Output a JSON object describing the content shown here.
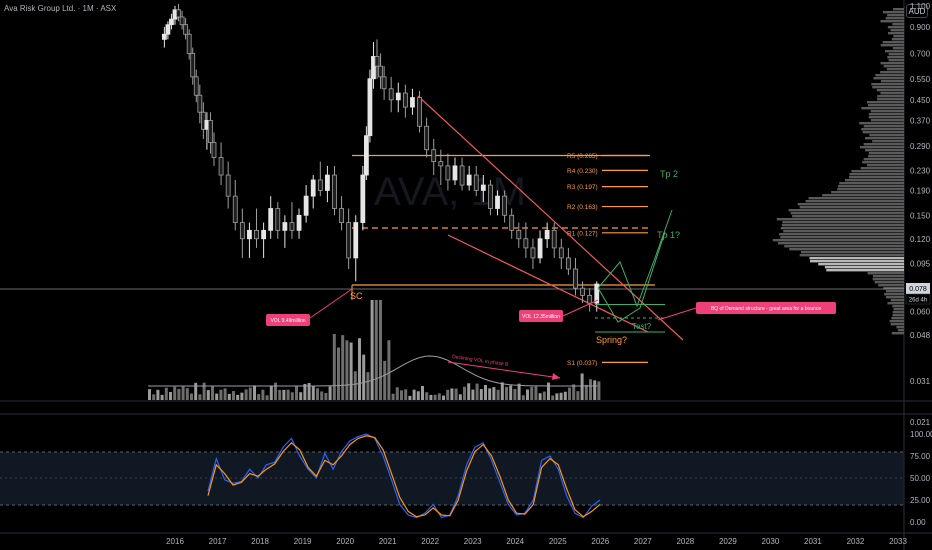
{
  "header": {
    "symbol": "Ava Risk Group Ltd. · 1M · ASX"
  },
  "currency_button": "AUD",
  "watermark": "AVA, 1M",
  "price_tag": {
    "value": "0.078",
    "countdown": "26d 4h"
  },
  "colors": {
    "bull": "#e6e6e6",
    "bear": "#a0a0a0",
    "orange": "#ff9b3c",
    "red_line": "#f05a5a",
    "green": "#3fae6a",
    "pink": "#f0407a",
    "stoch_k": "#2962ff",
    "stoch_d": "#ff9800"
  },
  "chart_data": [
    {
      "type": "candlestick",
      "title": "Ava Risk Group Ltd. · 1M · ASX",
      "y_scale": "log",
      "y_ticks": [
        "1.100",
        "0.900",
        "0.700",
        "0.550",
        "0.450",
        "0.370",
        "0.290",
        "0.230",
        "0.190",
        "0.150",
        "0.120",
        "0.095",
        "0.060",
        "0.048",
        "0.031",
        "0.021"
      ],
      "x_ticks": [
        "2016",
        "2017",
        "2018",
        "2019",
        "2020",
        "2021",
        "2022",
        "2023",
        "2024",
        "2025",
        "2026",
        "2027",
        "2028",
        "2029",
        "2030",
        "2031",
        "2032",
        "2033"
      ],
      "current_price": 0.078,
      "candles": [
        {
          "t": "2015-10",
          "o": 0.8,
          "h": 0.9,
          "l": 0.74,
          "c": 0.84
        },
        {
          "t": "2015-11",
          "o": 0.84,
          "h": 0.95,
          "l": 0.8,
          "c": 0.92
        },
        {
          "t": "2015-12",
          "o": 0.92,
          "h": 1.02,
          "l": 0.88,
          "c": 0.97
        },
        {
          "t": "2016-01",
          "o": 0.97,
          "h": 1.1,
          "l": 0.92,
          "c": 1.06
        },
        {
          "t": "2016-02",
          "o": 1.06,
          "h": 1.12,
          "l": 0.95,
          "c": 0.99
        },
        {
          "t": "2016-03",
          "o": 0.99,
          "h": 1.05,
          "l": 0.88,
          "c": 0.92
        },
        {
          "t": "2016-04",
          "o": 0.92,
          "h": 0.98,
          "l": 0.8,
          "c": 0.84
        },
        {
          "t": "2016-05",
          "o": 0.84,
          "h": 0.88,
          "l": 0.66,
          "c": 0.7
        },
        {
          "t": "2016-06",
          "o": 0.7,
          "h": 0.74,
          "l": 0.52,
          "c": 0.56
        },
        {
          "t": "2016-07",
          "o": 0.56,
          "h": 0.6,
          "l": 0.44,
          "c": 0.47
        },
        {
          "t": "2016-08",
          "o": 0.47,
          "h": 0.52,
          "l": 0.36,
          "c": 0.4
        },
        {
          "t": "2016-09",
          "o": 0.4,
          "h": 0.44,
          "l": 0.31,
          "c": 0.34
        },
        {
          "t": "2016-10",
          "o": 0.34,
          "h": 0.4,
          "l": 0.28,
          "c": 0.37
        },
        {
          "t": "2016-11",
          "o": 0.37,
          "h": 0.4,
          "l": 0.27,
          "c": 0.3
        },
        {
          "t": "2016-12",
          "o": 0.3,
          "h": 0.33,
          "l": 0.24,
          "c": 0.26
        },
        {
          "t": "2017-02",
          "o": 0.26,
          "h": 0.3,
          "l": 0.2,
          "c": 0.22
        },
        {
          "t": "2017-04",
          "o": 0.22,
          "h": 0.25,
          "l": 0.16,
          "c": 0.18
        },
        {
          "t": "2017-06",
          "o": 0.18,
          "h": 0.21,
          "l": 0.13,
          "c": 0.14
        },
        {
          "t": "2017-08",
          "o": 0.14,
          "h": 0.16,
          "l": 0.1,
          "c": 0.12
        },
        {
          "t": "2017-10",
          "o": 0.12,
          "h": 0.14,
          "l": 0.1,
          "c": 0.13
        },
        {
          "t": "2017-12",
          "o": 0.13,
          "h": 0.16,
          "l": 0.11,
          "c": 0.12
        },
        {
          "t": "2018-02",
          "o": 0.12,
          "h": 0.14,
          "l": 0.1,
          "c": 0.13
        },
        {
          "t": "2018-04",
          "o": 0.13,
          "h": 0.18,
          "l": 0.12,
          "c": 0.16
        },
        {
          "t": "2018-06",
          "o": 0.16,
          "h": 0.17,
          "l": 0.12,
          "c": 0.13
        },
        {
          "t": "2018-08",
          "o": 0.13,
          "h": 0.15,
          "l": 0.11,
          "c": 0.14
        },
        {
          "t": "2018-10",
          "o": 0.14,
          "h": 0.17,
          "l": 0.12,
          "c": 0.13
        },
        {
          "t": "2018-12",
          "o": 0.13,
          "h": 0.16,
          "l": 0.12,
          "c": 0.15
        },
        {
          "t": "2019-02",
          "o": 0.15,
          "h": 0.2,
          "l": 0.14,
          "c": 0.18
        },
        {
          "t": "2019-04",
          "o": 0.18,
          "h": 0.22,
          "l": 0.16,
          "c": 0.21
        },
        {
          "t": "2019-06",
          "o": 0.21,
          "h": 0.25,
          "l": 0.18,
          "c": 0.19
        },
        {
          "t": "2019-08",
          "o": 0.19,
          "h": 0.24,
          "l": 0.17,
          "c": 0.22
        },
        {
          "t": "2019-10",
          "o": 0.22,
          "h": 0.24,
          "l": 0.15,
          "c": 0.16
        },
        {
          "t": "2019-12",
          "o": 0.16,
          "h": 0.18,
          "l": 0.13,
          "c": 0.14
        },
        {
          "t": "2020-02",
          "o": 0.14,
          "h": 0.16,
          "l": 0.09,
          "c": 0.1
        },
        {
          "t": "2020-04",
          "o": 0.1,
          "h": 0.15,
          "l": 0.08,
          "c": 0.14
        },
        {
          "t": "2020-06",
          "o": 0.14,
          "h": 0.24,
          "l": 0.13,
          "c": 0.22
        },
        {
          "t": "2020-07",
          "o": 0.22,
          "h": 0.35,
          "l": 0.21,
          "c": 0.32
        },
        {
          "t": "2020-08",
          "o": 0.32,
          "h": 0.6,
          "l": 0.3,
          "c": 0.55
        },
        {
          "t": "2020-09",
          "o": 0.55,
          "h": 0.78,
          "l": 0.5,
          "c": 0.68
        },
        {
          "t": "2020-10",
          "o": 0.68,
          "h": 0.8,
          "l": 0.55,
          "c": 0.62
        },
        {
          "t": "2020-11",
          "o": 0.62,
          "h": 0.7,
          "l": 0.5,
          "c": 0.56
        },
        {
          "t": "2020-12",
          "o": 0.56,
          "h": 0.62,
          "l": 0.45,
          "c": 0.5
        },
        {
          "t": "2021-02",
          "o": 0.5,
          "h": 0.56,
          "l": 0.4,
          "c": 0.45
        },
        {
          "t": "2021-04",
          "o": 0.45,
          "h": 0.53,
          "l": 0.4,
          "c": 0.48
        },
        {
          "t": "2021-06",
          "o": 0.48,
          "h": 0.52,
          "l": 0.38,
          "c": 0.42
        },
        {
          "t": "2021-08",
          "o": 0.42,
          "h": 0.5,
          "l": 0.39,
          "c": 0.46
        },
        {
          "t": "2021-10",
          "o": 0.46,
          "h": 0.49,
          "l": 0.33,
          "c": 0.35
        },
        {
          "t": "2021-12",
          "o": 0.35,
          "h": 0.38,
          "l": 0.26,
          "c": 0.28
        },
        {
          "t": "2022-02",
          "o": 0.28,
          "h": 0.31,
          "l": 0.22,
          "c": 0.25
        },
        {
          "t": "2022-04",
          "o": 0.25,
          "h": 0.28,
          "l": 0.2,
          "c": 0.24
        },
        {
          "t": "2022-06",
          "o": 0.24,
          "h": 0.27,
          "l": 0.19,
          "c": 0.21
        },
        {
          "t": "2022-08",
          "o": 0.21,
          "h": 0.26,
          "l": 0.2,
          "c": 0.24
        },
        {
          "t": "2022-10",
          "o": 0.24,
          "h": 0.26,
          "l": 0.19,
          "c": 0.2
        },
        {
          "t": "2022-12",
          "o": 0.2,
          "h": 0.24,
          "l": 0.19,
          "c": 0.22
        },
        {
          "t": "2023-02",
          "o": 0.22,
          "h": 0.24,
          "l": 0.18,
          "c": 0.19
        },
        {
          "t": "2023-04",
          "o": 0.19,
          "h": 0.22,
          "l": 0.17,
          "c": 0.2
        },
        {
          "t": "2023-06",
          "o": 0.2,
          "h": 0.21,
          "l": 0.15,
          "c": 0.16
        },
        {
          "t": "2023-08",
          "o": 0.16,
          "h": 0.19,
          "l": 0.15,
          "c": 0.18
        },
        {
          "t": "2023-10",
          "o": 0.18,
          "h": 0.19,
          "l": 0.14,
          "c": 0.15
        },
        {
          "t": "2023-12",
          "o": 0.15,
          "h": 0.16,
          "l": 0.12,
          "c": 0.13
        },
        {
          "t": "2024-02",
          "o": 0.13,
          "h": 0.14,
          "l": 0.11,
          "c": 0.12
        },
        {
          "t": "2024-04",
          "o": 0.12,
          "h": 0.14,
          "l": 0.1,
          "c": 0.11
        },
        {
          "t": "2024-06",
          "o": 0.11,
          "h": 0.12,
          "l": 0.09,
          "c": 0.1
        },
        {
          "t": "2024-08",
          "o": 0.1,
          "h": 0.13,
          "l": 0.095,
          "c": 0.12
        },
        {
          "t": "2024-10",
          "o": 0.12,
          "h": 0.14,
          "l": 0.11,
          "c": 0.13
        },
        {
          "t": "2024-12",
          "o": 0.13,
          "h": 0.14,
          "l": 0.1,
          "c": 0.11
        },
        {
          "t": "2025-02",
          "o": 0.11,
          "h": 0.12,
          "l": 0.09,
          "c": 0.1
        },
        {
          "t": "2025-04",
          "o": 0.1,
          "h": 0.11,
          "l": 0.085,
          "c": 0.09
        },
        {
          "t": "2025-06",
          "o": 0.09,
          "h": 0.1,
          "l": 0.07,
          "c": 0.075
        },
        {
          "t": "2025-08",
          "o": 0.075,
          "h": 0.08,
          "l": 0.065,
          "c": 0.07
        },
        {
          "t": "2025-10",
          "o": 0.07,
          "h": 0.075,
          "l": 0.06,
          "c": 0.065
        },
        {
          "t": "2025-12",
          "o": 0.065,
          "h": 0.08,
          "l": 0.06,
          "c": 0.078
        }
      ],
      "levels": [
        {
          "label": "R5 (0.265)",
          "value": 0.265
        },
        {
          "label": "R4 (0.230)",
          "value": 0.23
        },
        {
          "label": "R3 (0.197)",
          "value": 0.197
        },
        {
          "label": "R2 (0.163)",
          "value": 0.163
        },
        {
          "label": "R1 (0.127)",
          "value": 0.127
        },
        {
          "label": "S1 (0.037)",
          "value": 0.037
        }
      ],
      "annotations": [
        {
          "label": "Tp 2"
        },
        {
          "label": "Tp 1?"
        },
        {
          "label": "SC"
        },
        {
          "label": "Spring?"
        },
        {
          "label": "Test?"
        },
        {
          "label": "Declining VOL in phase B"
        },
        {
          "label": "VOL 9.49million"
        },
        {
          "label": "VOL 12.35million"
        },
        {
          "label": "BQ of Demand structure - great area for a bounce"
        }
      ]
    },
    {
      "type": "line",
      "title": "",
      "y_ticks": [
        "100.00",
        "75.00",
        "50.00",
        "25.00",
        "0.00"
      ],
      "ylim": [
        0,
        100
      ],
      "series": [
        {
          "values": [
            35,
            72,
            48,
            44,
            46,
            60,
            50,
            65,
            68,
            85,
            95,
            75,
            60,
            50,
            78,
            60,
            80,
            92,
            97,
            100,
            95,
            75,
            48,
            20,
            8,
            5,
            10,
            20,
            5,
            8,
            30,
            65,
            85,
            90,
            70,
            45,
            20,
            8,
            10,
            25,
            70,
            75,
            60,
            30,
            10,
            5,
            18,
            25
          ]
        },
        {
          "values": [
            30,
            65,
            55,
            42,
            45,
            55,
            52,
            60,
            66,
            80,
            90,
            82,
            62,
            52,
            70,
            65,
            75,
            88,
            95,
            98,
            96,
            82,
            55,
            28,
            12,
            6,
            8,
            16,
            8,
            7,
            25,
            58,
            80,
            88,
            75,
            52,
            25,
            10,
            9,
            20,
            62,
            72,
            65,
            38,
            14,
            6,
            12,
            20
          ]
        }
      ]
    }
  ]
}
